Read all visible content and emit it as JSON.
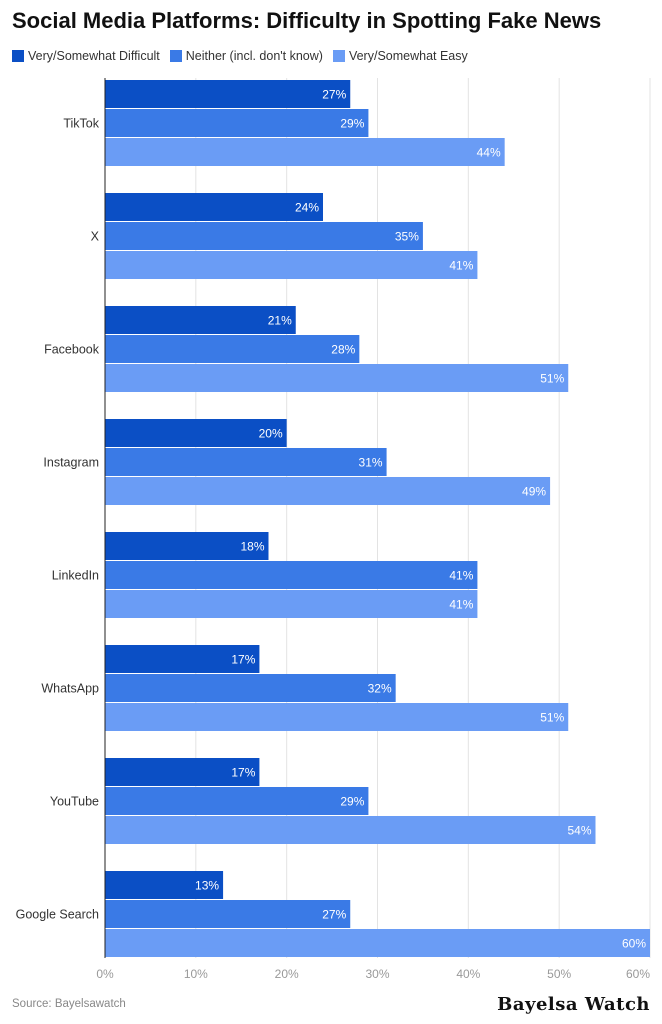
{
  "title": "Social Media Platforms: Difficulty in Spotting Fake News",
  "source": "Source: Bayelsawatch",
  "brand": "Bayelsa Watch",
  "colors": {
    "difficult": "#0b4fc5",
    "neither": "#3a7ae6",
    "easy": "#6a9cf5"
  },
  "chart_data": {
    "type": "bar",
    "orientation": "horizontal",
    "title": "Social Media Platforms: Difficulty in Spotting Fake News",
    "categories": [
      "TikTok",
      "X",
      "Facebook",
      "Instagram",
      "LinkedIn",
      "WhatsApp",
      "YouTube",
      "Google Search"
    ],
    "series": [
      {
        "name": "Very/Somewhat Difficult",
        "values": [
          27,
          24,
          21,
          20,
          18,
          17,
          17,
          13
        ]
      },
      {
        "name": "Neither (incl. don't know)",
        "values": [
          29,
          35,
          28,
          31,
          41,
          32,
          29,
          27
        ]
      },
      {
        "name": "Very/Somewhat Easy",
        "values": [
          44,
          41,
          51,
          49,
          41,
          51,
          54,
          60
        ]
      }
    ],
    "value_labels": [
      [
        "27%",
        "24%",
        "21%",
        "20%",
        "18%",
        "17%",
        "17%",
        "13%"
      ],
      [
        "29%",
        "35%",
        "28%",
        "31%",
        "41%",
        "32%",
        "29%",
        "27%"
      ],
      [
        "44%",
        "41%",
        "51%",
        "49%",
        "41%",
        "51%",
        "54%",
        "60%"
      ]
    ],
    "xlim": [
      0,
      60
    ],
    "ticks": [
      0,
      10,
      20,
      30,
      40,
      50,
      60
    ],
    "tick_labels": [
      "0%",
      "10%",
      "20%",
      "30%",
      "40%",
      "50%",
      "60%"
    ],
    "grid": true,
    "legend": "top-left"
  }
}
